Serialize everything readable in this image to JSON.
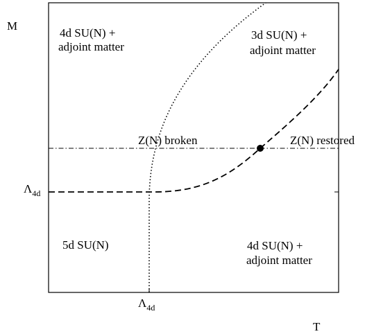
{
  "axes": {
    "y_label": "M",
    "x_label": "T",
    "y_tick": {
      "symbol": "Λ",
      "subscript": "4d"
    },
    "x_tick": {
      "symbol": "Λ",
      "subscript": "4d"
    }
  },
  "regions": {
    "top_left": [
      "4d SU(N) +",
      "adjoint matter"
    ],
    "top_right": [
      "3d SU(N) +",
      "adjoint matter"
    ],
    "bottom_left": [
      "5d SU(N)"
    ],
    "bottom_right": [
      "4d SU(N) +",
      "adjoint matter"
    ]
  },
  "line_labels": {
    "broken": "Z(N) broken",
    "restored": "Z(N) restored"
  }
}
